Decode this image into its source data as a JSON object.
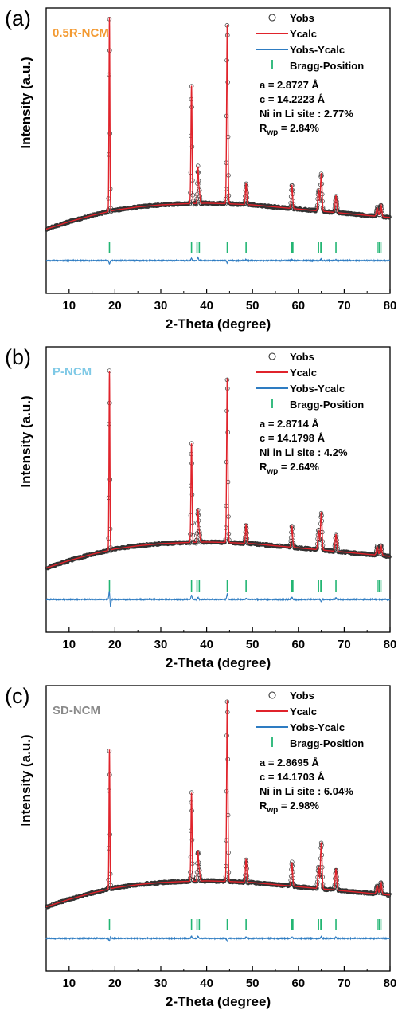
{
  "chart_data": [
    {
      "type": "line",
      "panel_label": "(a)",
      "sample_name": "0.5R-NCM",
      "sample_color": "#F39A32",
      "xlabel": "2-Theta (degree)",
      "ylabel": "Intensity (a.u.)",
      "xlim": [
        5,
        80
      ],
      "x_ticks": [
        10,
        20,
        30,
        40,
        50,
        60,
        70,
        80
      ],
      "ylim": [
        0,
        1
      ],
      "y_ticks_shown": false,
      "legend": {
        "position": "top-right",
        "entries": [
          "Yobs",
          "Ycalc",
          "Yobs-Ycalc",
          "Bragg-Position"
        ]
      },
      "params": {
        "a": "a = 2.8727 Å",
        "c": "c = 14.2223 Å",
        "ni": "Ni in Li site : 2.77%",
        "rwp_prefix": "R",
        "rwp_sub": "wp",
        "rwp_value": " = 2.84%"
      },
      "background": [
        [
          5,
          0.085
        ],
        [
          10,
          0.12
        ],
        [
          15,
          0.15
        ],
        [
          20,
          0.175
        ],
        [
          25,
          0.19
        ],
        [
          30,
          0.2
        ],
        [
          35,
          0.205
        ],
        [
          40,
          0.208
        ],
        [
          45,
          0.205
        ],
        [
          50,
          0.2
        ],
        [
          55,
          0.19
        ],
        [
          60,
          0.18
        ],
        [
          65,
          0.17
        ],
        [
          70,
          0.16
        ],
        [
          75,
          0.15
        ],
        [
          80,
          0.14
        ]
      ],
      "peaks": [
        [
          18.8,
          0.92
        ],
        [
          36.7,
          0.56
        ],
        [
          38.1,
          0.17
        ],
        [
          38.4,
          0.06
        ],
        [
          44.5,
          0.85
        ],
        [
          48.6,
          0.1
        ],
        [
          58.6,
          0.11
        ],
        [
          64.4,
          0.1
        ],
        [
          65.0,
          0.18
        ],
        [
          68.2,
          0.08
        ],
        [
          77.2,
          0.04
        ],
        [
          78.0,
          0.06
        ]
      ],
      "bragg_positions": [
        18.8,
        36.7,
        37.9,
        38.4,
        44.5,
        48.6,
        58.6,
        58.8,
        64.4,
        64.9,
        65.1,
        68.2,
        77.2,
        77.6,
        78.0
      ],
      "difference_spikes": [
        [
          18.8,
          -0.03
        ],
        [
          36.7,
          0.02
        ],
        [
          38.1,
          0.03
        ],
        [
          44.5,
          -0.02
        ],
        [
          48.6,
          0.01
        ],
        [
          58.6,
          0.01
        ],
        [
          65.0,
          0.015
        ],
        [
          68.2,
          0.01
        ]
      ]
    },
    {
      "type": "line",
      "panel_label": "(b)",
      "sample_name": "P-NCM",
      "sample_color": "#7FC9E6",
      "xlabel": "2-Theta (degree)",
      "ylabel": "Intensity (a.u.)",
      "xlim": [
        5,
        80
      ],
      "x_ticks": [
        10,
        20,
        30,
        40,
        50,
        60,
        70,
        80
      ],
      "ylim": [
        0,
        1
      ],
      "y_ticks_shown": false,
      "legend": {
        "position": "top-right",
        "entries": [
          "Yobs",
          "Ycalc",
          "Yobs-Ycalc",
          "Bragg-Position"
        ]
      },
      "params": {
        "a": "a = 2.8714 Å",
        "c": "c = 14.1798 Å",
        "ni": "Ni in Li site : 4.2%",
        "rwp_prefix": "R",
        "rwp_sub": "wp",
        "rwp_value": " = 2.64%"
      },
      "background": [
        [
          5,
          0.085
        ],
        [
          10,
          0.12
        ],
        [
          15,
          0.15
        ],
        [
          20,
          0.175
        ],
        [
          25,
          0.19
        ],
        [
          30,
          0.2
        ],
        [
          35,
          0.205
        ],
        [
          40,
          0.208
        ],
        [
          45,
          0.205
        ],
        [
          50,
          0.2
        ],
        [
          55,
          0.19
        ],
        [
          60,
          0.18
        ],
        [
          65,
          0.17
        ],
        [
          70,
          0.16
        ],
        [
          75,
          0.15
        ],
        [
          80,
          0.14
        ]
      ],
      "peaks": [
        [
          18.8,
          0.85
        ],
        [
          36.7,
          0.47
        ],
        [
          38.1,
          0.15
        ],
        [
          38.4,
          0.05
        ],
        [
          44.5,
          0.78
        ],
        [
          48.6,
          0.09
        ],
        [
          58.6,
          0.1
        ],
        [
          64.4,
          0.09
        ],
        [
          65.0,
          0.18
        ],
        [
          68.2,
          0.08
        ],
        [
          77.2,
          0.04
        ],
        [
          78.0,
          0.05
        ]
      ],
      "bragg_positions": [
        18.8,
        36.7,
        37.9,
        38.4,
        44.5,
        48.6,
        58.6,
        58.8,
        64.4,
        64.9,
        65.1,
        68.2,
        77.2,
        77.6,
        78.0
      ],
      "difference_spikes": [
        [
          18.8,
          0.09
        ],
        [
          19.0,
          -0.08
        ],
        [
          36.7,
          0.04
        ],
        [
          38.1,
          0.02
        ],
        [
          44.5,
          0.05
        ],
        [
          48.6,
          0.01
        ],
        [
          58.6,
          0.02
        ],
        [
          65.0,
          -0.02
        ],
        [
          68.2,
          0.015
        ]
      ]
    },
    {
      "type": "line",
      "panel_label": "(c)",
      "sample_name": "SD-NCM",
      "sample_color": "#8A8A8A",
      "xlabel": "2-Theta (degree)",
      "ylabel": "Intensity (a.u.)",
      "xlim": [
        5,
        80
      ],
      "x_ticks": [
        10,
        20,
        30,
        40,
        50,
        60,
        70,
        80
      ],
      "ylim": [
        0,
        1
      ],
      "y_ticks_shown": false,
      "legend": {
        "position": "top-right",
        "entries": [
          "Yobs",
          "Ycalc",
          "Yobs-Ycalc",
          "Bragg-Position"
        ]
      },
      "params": {
        "a": "a = 2.8695 Å",
        "c": "c = 14.1703 Å",
        "ni": "Ni in Li site : 6.04%",
        "rwp_prefix": "R",
        "rwp_sub": "wp",
        "rwp_value": " = 2.98%"
      },
      "background": [
        [
          5,
          0.085
        ],
        [
          10,
          0.12
        ],
        [
          15,
          0.15
        ],
        [
          20,
          0.175
        ],
        [
          25,
          0.19
        ],
        [
          30,
          0.2
        ],
        [
          35,
          0.205
        ],
        [
          40,
          0.208
        ],
        [
          45,
          0.205
        ],
        [
          50,
          0.2
        ],
        [
          55,
          0.19
        ],
        [
          60,
          0.18
        ],
        [
          65,
          0.17
        ],
        [
          70,
          0.16
        ],
        [
          75,
          0.15
        ],
        [
          80,
          0.14
        ]
      ],
      "peaks": [
        [
          18.8,
          0.66
        ],
        [
          36.7,
          0.42
        ],
        [
          38.1,
          0.14
        ],
        [
          38.4,
          0.05
        ],
        [
          44.5,
          0.86
        ],
        [
          48.6,
          0.11
        ],
        [
          58.6,
          0.11
        ],
        [
          64.4,
          0.1
        ],
        [
          65.0,
          0.22
        ],
        [
          68.2,
          0.1
        ],
        [
          77.2,
          0.04
        ],
        [
          78.0,
          0.06
        ]
      ],
      "bragg_positions": [
        18.8,
        36.7,
        37.9,
        38.4,
        44.5,
        48.6,
        58.6,
        58.8,
        64.4,
        64.9,
        65.1,
        68.2,
        77.2,
        77.6,
        78.0
      ],
      "difference_spikes": [
        [
          18.8,
          -0.03
        ],
        [
          19.0,
          0.02
        ],
        [
          36.7,
          0.02
        ],
        [
          38.1,
          0.02
        ],
        [
          44.5,
          -0.03
        ],
        [
          48.6,
          0.01
        ],
        [
          58.6,
          0.01
        ],
        [
          65.0,
          0.02
        ],
        [
          68.2,
          0.01
        ]
      ]
    }
  ],
  "colors": {
    "yobs_marker": "#333333",
    "ycalc_line": "#E0232B",
    "diff_line": "#2E7CC2",
    "bragg_tick": "#22B573",
    "axis": "#000000"
  }
}
